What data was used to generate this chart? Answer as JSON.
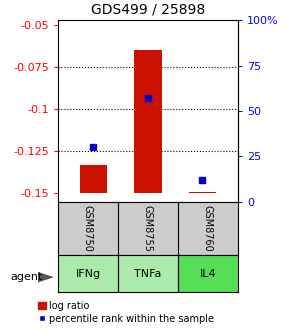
{
  "title": "GDS499 / 25898",
  "samples": [
    "GSM8750",
    "GSM8755",
    "GSM8760"
  ],
  "agents": [
    "IFNg",
    "TNFa",
    "IL4"
  ],
  "log_ratios": [
    -0.133,
    -0.065,
    -0.149
  ],
  "bar_baseline": -0.15,
  "percentile_ranks": [
    30,
    57,
    12
  ],
  "ylim_left": [
    -0.155,
    -0.047
  ],
  "ylim_right": [
    0,
    100
  ],
  "yticks_left": [
    -0.15,
    -0.125,
    -0.1,
    -0.075,
    -0.05
  ],
  "yticks_right": [
    0,
    25,
    50,
    75,
    100
  ],
  "bar_color": "#cc1100",
  "marker_color": "#0000cc",
  "agent_bg_light": "#aaeaaa",
  "agent_bg_dark": "#55dd55",
  "sample_box_color": "#cccccc",
  "title_fontsize": 10,
  "tick_fontsize": 8,
  "label_fontsize": 8,
  "legend_fontsize": 7
}
